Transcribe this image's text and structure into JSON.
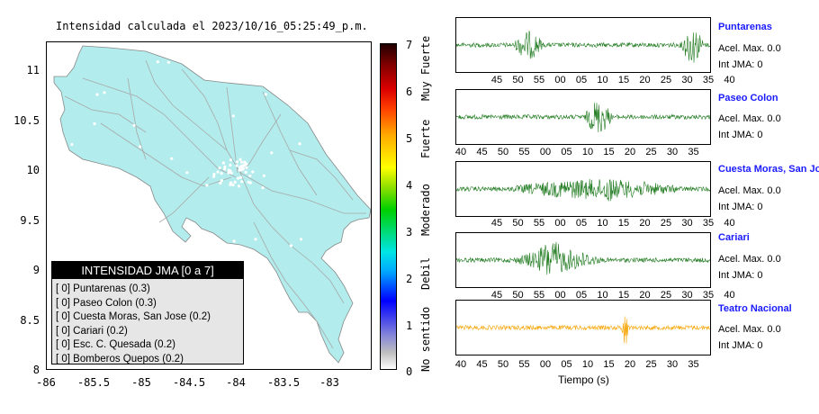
{
  "title": "Intensidad calculada el 2023/10/16_05:25:49_p.m.",
  "map": {
    "lat_ticks": [
      "11",
      "10.5",
      "10",
      "9.5",
      "9",
      "8.5",
      "8"
    ],
    "lon_ticks": [
      "-86",
      "-85.5",
      "-85",
      "-84.5",
      "-84",
      "-83.5",
      "-83"
    ],
    "land_color": "#b2ecec",
    "road_color": "#a8a8a8",
    "station_color": "#ffffff"
  },
  "legend": {
    "header": "INTENSIDAD JMA [0 a 7]",
    "items": [
      "[ 0] Puntarenas (0.3)",
      "[ 0] Paseo Colon (0.3)",
      "[ 0] Cuesta Moras, San Jose (0.2)",
      "[ 0] Cariari (0.2)",
      "[ 0] Esc. C. Quesada (0.2)",
      "[ 0] Bomberos Quepos (0.2)"
    ]
  },
  "colorbar": {
    "values": [
      "7",
      "6",
      "5",
      "4",
      "3",
      "2",
      "1",
      "0"
    ],
    "categories": [
      "Muy Fuerte",
      "Fuerte",
      "Moderado",
      "Debil",
      "No sentido"
    ]
  },
  "waveforms": {
    "xlabel": "Tiempo (s)",
    "trace_color_default": "#1f7a1f",
    "trace_color_highlight": "#f5a300",
    "stations": [
      {
        "name": "Puntarenas",
        "acel": "Acel. Max. 0.0",
        "int": "Int JMA: 0",
        "ticks": [
          "45",
          "50",
          "55",
          "00",
          "05",
          "10",
          "15",
          "20",
          "25",
          "30",
          "35",
          "40"
        ]
      },
      {
        "name": "Paseo Colon",
        "acel": "Acel. Max. 0.0",
        "int": "Int JMA: 0",
        "ticks": [
          "40",
          "45",
          "50",
          "55",
          "00",
          "05",
          "10",
          "15",
          "20",
          "25",
          "30",
          "35"
        ]
      },
      {
        "name": "Cuesta Moras, San Jose",
        "acel": "Acel. Max. 0.0",
        "int": "Int JMA: 0",
        "ticks": [
          "45",
          "50",
          "55",
          "00",
          "05",
          "10",
          "15",
          "20",
          "25",
          "30",
          "35",
          "40"
        ]
      },
      {
        "name": "Cariari",
        "acel": "Acel. Max. 0.0",
        "int": "Int JMA: 0",
        "ticks": [
          "45",
          "50",
          "55",
          "00",
          "05",
          "10",
          "15",
          "20",
          "25",
          "30",
          "35",
          "40"
        ]
      },
      {
        "name": "Teatro Nacional",
        "acel": "Acel. Max. 0.0",
        "int": "Int JMA: 0",
        "ticks": [
          "40",
          "45",
          "50",
          "55",
          "00",
          "05",
          "10",
          "15",
          "20",
          "25",
          "30",
          "35"
        ]
      }
    ]
  }
}
